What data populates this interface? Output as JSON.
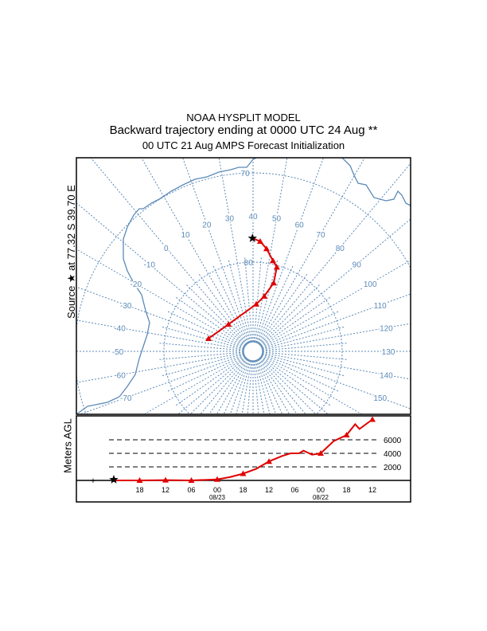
{
  "titles": {
    "line1": "NOAA HYSPLIT MODEL",
    "line2": "Backward trajectory ending at 0000 UTC 24 Aug **",
    "line3": "00 UTC 21 Aug    AMPS  Forecast Initialization"
  },
  "source_label": "Source ★ at   77.32 S   39.70 E",
  "height_axis_label": "Meters AGL",
  "colors": {
    "map": "#5b8ab8",
    "trajectory": "#e00000",
    "source": "#000000"
  },
  "chart_data": [
    {
      "type": "scatter",
      "title": "Trajectory map (south polar stereographic)",
      "latitude_circles": [
        {
          "lat": -80,
          "label": "80"
        },
        {
          "lat": -70,
          "label": "70"
        }
      ],
      "longitude_labels": [
        "-70",
        "-60",
        "-50",
        "-40",
        "-30",
        "-20",
        "-10",
        "0",
        "10",
        "20",
        "30",
        "40",
        "50",
        "60",
        "70",
        "80",
        "90",
        "100",
        "110",
        "120",
        "130",
        "140",
        "150"
      ],
      "source": {
        "lat": -77.32,
        "lon": 39.7
      },
      "trajectory": [
        {
          "hour": 0,
          "lat": -77.32,
          "lon": 39.7
        },
        {
          "hour": -6,
          "lat": -77.65,
          "lon": 43.7
        },
        {
          "hour": -12,
          "lat": -78.4,
          "lon": 47.5
        },
        {
          "hour": -18,
          "lat": -79.6,
          "lon": 52.4
        },
        {
          "hour": -24,
          "lat": -80.2,
          "lon": 55.8
        },
        {
          "hour": -30,
          "lat": -82.0,
          "lon": 56.8
        },
        {
          "hour": -36,
          "lat": -83.7,
          "lon": 51.5
        },
        {
          "hour": -42,
          "lat": -84.7,
          "lon": 43.9
        },
        {
          "hour": -48,
          "lat": -85.9,
          "lon": -2.4
        },
        {
          "hour": -60,
          "lat": -84.8,
          "lon": -34.0
        }
      ]
    },
    {
      "type": "line",
      "title": "Height profile",
      "ylabel": "Meters AGL",
      "ylim": [
        0,
        9500
      ],
      "y_ticks": [
        {
          "v": 2000,
          "label": "2000"
        },
        {
          "v": 4000,
          "label": "4000"
        },
        {
          "v": 6000,
          "label": "6000"
        }
      ],
      "x_ticks": [
        {
          "hour": -6,
          "label": "18"
        },
        {
          "hour": -12,
          "label": "12"
        },
        {
          "hour": -18,
          "label": "06"
        },
        {
          "hour": -24,
          "label": "00",
          "date": "08/23"
        },
        {
          "hour": -30,
          "label": "18"
        },
        {
          "hour": -36,
          "label": "12"
        },
        {
          "hour": -42,
          "label": "06"
        },
        {
          "hour": -48,
          "label": "00",
          "date": "08/22"
        },
        {
          "hour": -54,
          "label": "18"
        },
        {
          "hour": -60,
          "label": "12"
        }
      ],
      "series": [
        {
          "name": "trajectory",
          "points": [
            [
              0,
              0
            ],
            [
              -6,
              0
            ],
            [
              -12,
              50
            ],
            [
              -18,
              0
            ],
            [
              -24,
              150
            ],
            [
              -27,
              500
            ],
            [
              -30,
              1000
            ],
            [
              -33,
              1700
            ],
            [
              -36,
              2800
            ],
            [
              -39,
              3600
            ],
            [
              -41,
              4000
            ],
            [
              -43,
              4000
            ],
            [
              -44,
              4400
            ],
            [
              -46,
              3800
            ],
            [
              -48,
              4000
            ],
            [
              -51,
              5800
            ],
            [
              -54,
              6700
            ],
            [
              -56,
              8300
            ],
            [
              -57,
              7600
            ],
            [
              -60,
              9000
            ]
          ]
        }
      ]
    }
  ]
}
